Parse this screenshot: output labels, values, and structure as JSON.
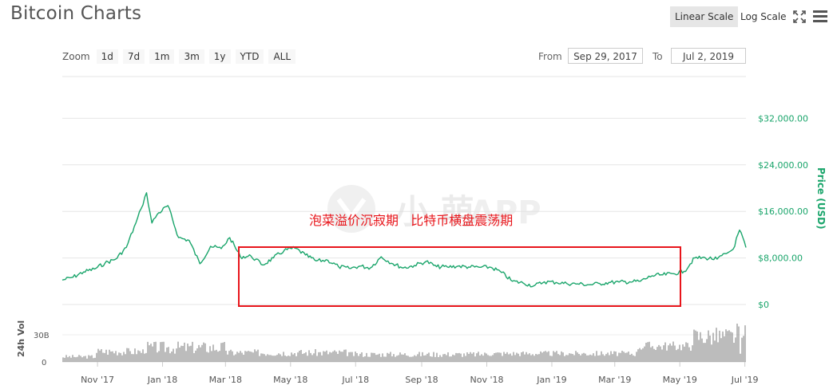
{
  "header": {
    "title": "Bitcoin Charts",
    "linear_scale": "Linear Scale",
    "log_scale": "Log Scale",
    "active_scale": "linear"
  },
  "zoom": {
    "label": "Zoom",
    "buttons": [
      "1d",
      "7d",
      "1m",
      "3m",
      "1y",
      "YTD",
      "ALL"
    ]
  },
  "range": {
    "from_label": "From",
    "from_value": "Sep 29, 2017",
    "to_label": "To",
    "to_value": "Jul 2, 2019"
  },
  "watermark": "APP",
  "annotation": "泡菜溢价沉寂期   比特币横盘震荡期",
  "colors": {
    "price_line": "#1aa56b",
    "axis_text": "#1aa56b",
    "highlight_box": "#e8151b",
    "annotation": "#e8151b",
    "volume": "#7a7a7a"
  },
  "chart_data": {
    "type": "line",
    "ylabel": "Price (USD)",
    "y_ticks": [
      "$32,000.00",
      "$24,000.00",
      "$16,000.00",
      "$8,000.00",
      "$0"
    ],
    "ylim": [
      0,
      40000
    ],
    "x_ticks": [
      "Nov '17",
      "Jan '18",
      "Mar '18",
      "May '18",
      "Jul '18",
      "Sep '18",
      "Nov '18",
      "Jan '19",
      "Mar '19",
      "May '19",
      "Jul '19"
    ],
    "volume_label": "24h Vol",
    "volume_ticks": [
      "30B",
      "0"
    ],
    "grid": true,
    "series": [
      {
        "values": [
          [
            "2017-09-29",
            4200
          ],
          [
            "2017-10-09",
            4700
          ],
          [
            "2017-10-19",
            5600
          ],
          [
            "2017-10-29",
            6100
          ],
          [
            "2017-11-08",
            7100
          ],
          [
            "2017-11-18",
            7800
          ],
          [
            "2017-11-28",
            9800
          ],
          [
            "2017-12-07",
            14000
          ],
          [
            "2017-12-12",
            16500
          ],
          [
            "2017-12-17",
            19200
          ],
          [
            "2017-12-22",
            14000
          ],
          [
            "2017-12-27",
            15500
          ],
          [
            "2018-01-06",
            17000
          ],
          [
            "2018-01-16",
            11500
          ],
          [
            "2018-01-26",
            11000
          ],
          [
            "2018-02-05",
            7000
          ],
          [
            "2018-02-15",
            10000
          ],
          [
            "2018-02-25",
            9600
          ],
          [
            "2018-03-05",
            11500
          ],
          [
            "2018-03-15",
            8200
          ],
          [
            "2018-03-25",
            8300
          ],
          [
            "2018-04-05",
            6800
          ],
          [
            "2018-04-15",
            8000
          ],
          [
            "2018-04-25",
            9300
          ],
          [
            "2018-05-05",
            9700
          ],
          [
            "2018-05-15",
            8500
          ],
          [
            "2018-05-25",
            7500
          ],
          [
            "2018-06-05",
            7600
          ],
          [
            "2018-06-15",
            6500
          ],
          [
            "2018-06-25",
            6200
          ],
          [
            "2018-07-05",
            6600
          ],
          [
            "2018-07-15",
            6300
          ],
          [
            "2018-07-25",
            8200
          ],
          [
            "2018-08-05",
            7000
          ],
          [
            "2018-08-15",
            6300
          ],
          [
            "2018-08-25",
            6700
          ],
          [
            "2018-09-05",
            7400
          ],
          [
            "2018-09-15",
            6500
          ],
          [
            "2018-09-25",
            6450
          ],
          [
            "2018-10-05",
            6600
          ],
          [
            "2018-10-15",
            6450
          ],
          [
            "2018-10-25",
            6400
          ],
          [
            "2018-11-05",
            6400
          ],
          [
            "2018-11-15",
            5500
          ],
          [
            "2018-11-25",
            4000
          ],
          [
            "2018-12-05",
            3700
          ],
          [
            "2018-12-15",
            3200
          ],
          [
            "2018-12-25",
            3900
          ],
          [
            "2019-01-05",
            3800
          ],
          [
            "2019-01-15",
            3600
          ],
          [
            "2019-01-25",
            3550
          ],
          [
            "2019-02-05",
            3400
          ],
          [
            "2019-02-15",
            3600
          ],
          [
            "2019-02-25",
            3800
          ],
          [
            "2019-03-05",
            3850
          ],
          [
            "2019-03-15",
            3900
          ],
          [
            "2019-03-25",
            4000
          ],
          [
            "2019-04-05",
            4950
          ],
          [
            "2019-04-15",
            5100
          ],
          [
            "2019-04-25",
            5300
          ],
          [
            "2019-05-05",
            5700
          ],
          [
            "2019-05-15",
            8000
          ],
          [
            "2019-05-25",
            8000
          ],
          [
            "2019-06-05",
            7800
          ],
          [
            "2019-06-15",
            8900
          ],
          [
            "2019-06-20",
            9500
          ],
          [
            "2019-06-26",
            12800
          ],
          [
            "2019-07-02",
            9800
          ]
        ]
      }
    ]
  }
}
